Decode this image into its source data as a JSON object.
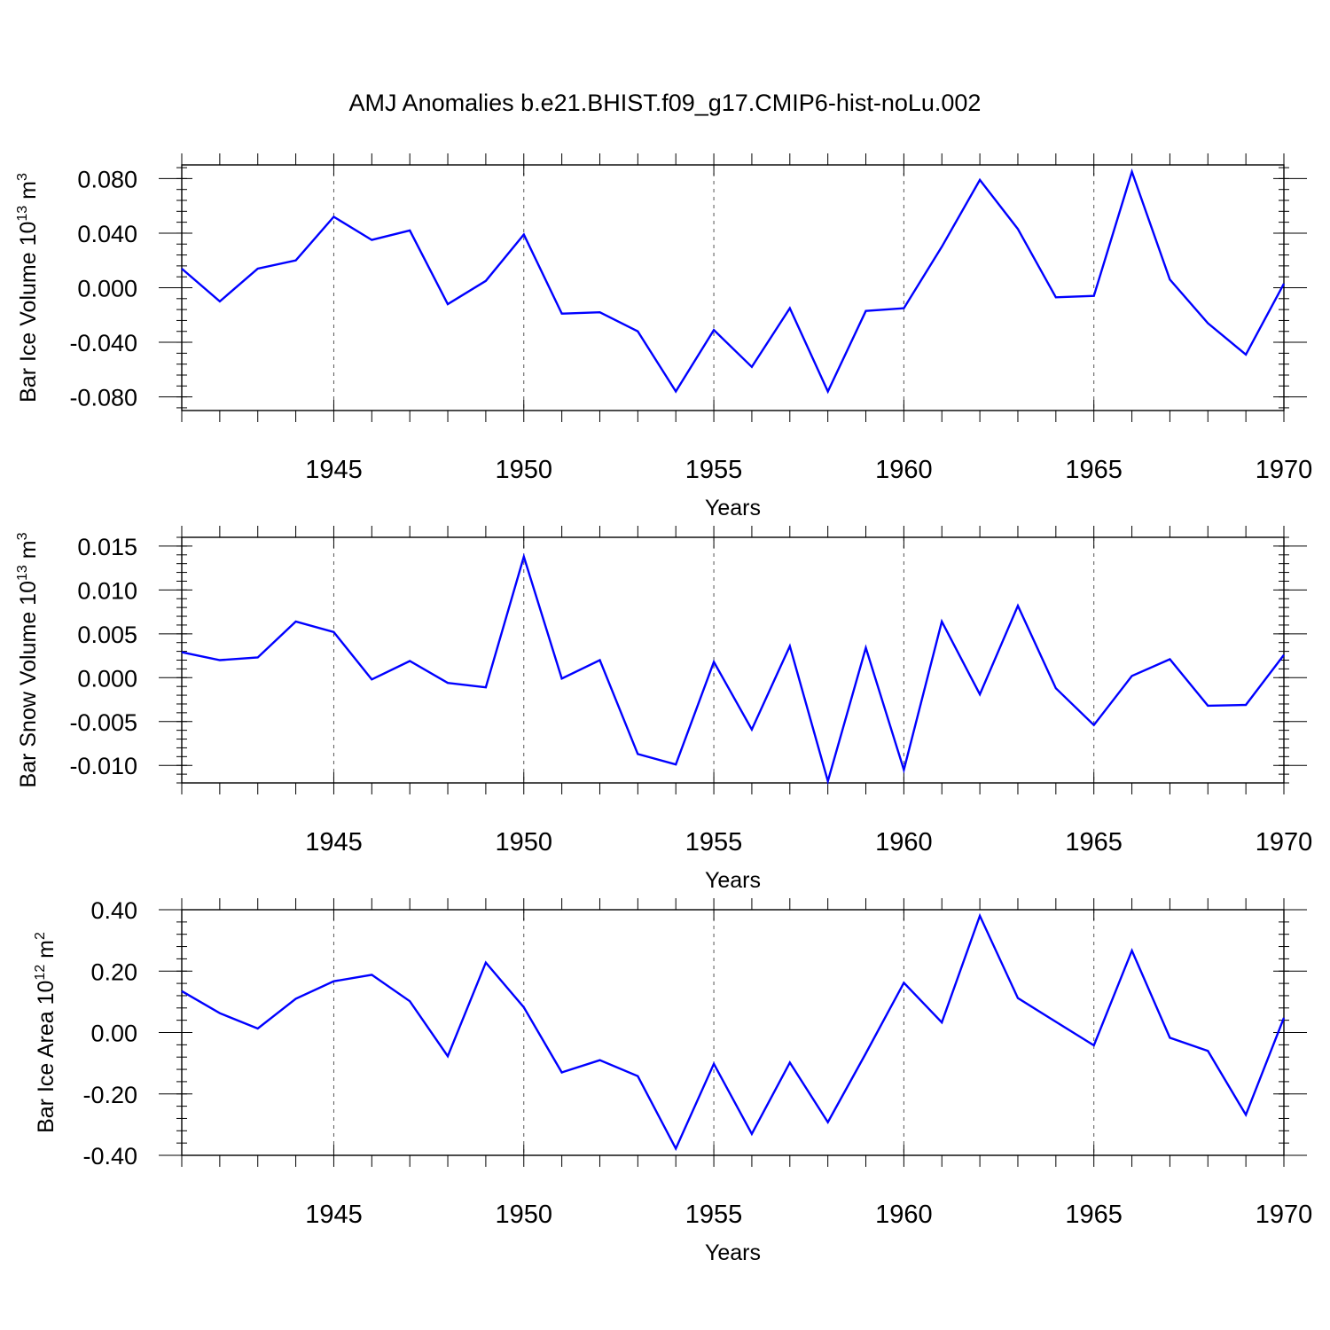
{
  "title": "AMJ Anomalies b.e21.BHIST.f09_g17.CMIP6-hist-noLu.002",
  "series_color": "#0000ff",
  "chart_data": [
    {
      "type": "line",
      "ylabel": {
        "base": "Bar Ice Volume 10",
        "exp": "13",
        "unit": " m",
        "unit_exp": "3"
      },
      "xlabel": "Years",
      "xlim": [
        1941,
        1970
      ],
      "ylim": [
        -0.09,
        0.09
      ],
      "grid": "dashed vertical at major ticks",
      "yticks": [
        0.08,
        0.04,
        0.0,
        -0.04,
        -0.08
      ],
      "ytick_labels": [
        "0.080",
        "0.040",
        "0.000",
        "-0.040",
        "-0.080"
      ],
      "yminor_step": 0.008,
      "xticks": [
        1945,
        1950,
        1955,
        1960,
        1965,
        1970
      ],
      "xtick_labels": [
        "1945",
        "1950",
        "1955",
        "1960",
        "1965",
        "1970"
      ],
      "x": [
        1941,
        1942,
        1943,
        1944,
        1945,
        1946,
        1947,
        1948,
        1949,
        1950,
        1951,
        1952,
        1953,
        1954,
        1955,
        1956,
        1957,
        1958,
        1959,
        1960,
        1961,
        1962,
        1963,
        1964,
        1965,
        1966,
        1967,
        1968,
        1969,
        1970
      ],
      "values": [
        0.014,
        -0.01,
        0.014,
        0.02,
        0.052,
        0.035,
        0.042,
        -0.012,
        0.005,
        0.039,
        -0.019,
        -0.018,
        -0.032,
        -0.076,
        -0.031,
        -0.058,
        -0.015,
        -0.076,
        -0.017,
        -0.015,
        0.03,
        0.079,
        0.043,
        -0.007,
        -0.006,
        0.085,
        0.006,
        -0.026,
        -0.049,
        0.003
      ]
    },
    {
      "type": "line",
      "ylabel": {
        "base": "Bar Snow Volume 10",
        "exp": "13",
        "unit": " m",
        "unit_exp": "3"
      },
      "xlabel": "Years",
      "xlim": [
        1941,
        1970
      ],
      "ylim": [
        -0.012,
        0.016
      ],
      "grid": "dashed vertical at major ticks",
      "yticks": [
        0.015,
        0.01,
        0.005,
        0.0,
        -0.005,
        -0.01
      ],
      "ytick_labels": [
        "0.015",
        "0.010",
        "0.005",
        "0.000",
        "-0.005",
        "-0.010"
      ],
      "yminor_step": 0.001,
      "xticks": [
        1945,
        1950,
        1955,
        1960,
        1965,
        1970
      ],
      "xtick_labels": [
        "1945",
        "1950",
        "1955",
        "1960",
        "1965",
        "1970"
      ],
      "x": [
        1941,
        1942,
        1943,
        1944,
        1945,
        1946,
        1947,
        1948,
        1949,
        1950,
        1951,
        1952,
        1953,
        1954,
        1955,
        1956,
        1957,
        1958,
        1959,
        1960,
        1961,
        1962,
        1963,
        1964,
        1965,
        1966,
        1967,
        1968,
        1969,
        1970
      ],
      "values": [
        0.0029,
        0.002,
        0.0023,
        0.0064,
        0.0052,
        -0.0002,
        0.0019,
        -0.0006,
        -0.0011,
        0.0138,
        -0.0001,
        0.002,
        -0.0087,
        -0.0099,
        0.0018,
        -0.0059,
        0.0036,
        -0.0118,
        0.0034,
        -0.0105,
        0.0064,
        -0.0019,
        0.0082,
        -0.0012,
        -0.0054,
        0.0002,
        0.0021,
        -0.0032,
        -0.0031,
        0.0026
      ]
    },
    {
      "type": "line",
      "ylabel": {
        "base": "Bar Ice Area 10",
        "exp": "12",
        "unit": " m",
        "unit_exp": "2"
      },
      "xlabel": "Years",
      "xlim": [
        1941,
        1970
      ],
      "ylim": [
        -0.4,
        0.4
      ],
      "grid": "dashed vertical at major ticks",
      "yticks": [
        0.4,
        0.2,
        0.0,
        -0.2,
        -0.4
      ],
      "ytick_labels": [
        "0.40",
        "0.20",
        "0.00",
        "-0.20",
        "-0.40"
      ],
      "yminor_step": 0.04,
      "xticks": [
        1945,
        1950,
        1955,
        1960,
        1965,
        1970
      ],
      "xtick_labels": [
        "1945",
        "1950",
        "1955",
        "1960",
        "1965",
        "1970"
      ],
      "x": [
        1941,
        1942,
        1943,
        1944,
        1945,
        1946,
        1947,
        1948,
        1949,
        1950,
        1951,
        1952,
        1953,
        1954,
        1955,
        1956,
        1957,
        1958,
        1959,
        1960,
        1961,
        1962,
        1963,
        1964,
        1965,
        1966,
        1967,
        1968,
        1969,
        1970
      ],
      "values": [
        0.135,
        0.063,
        0.013,
        0.11,
        0.167,
        0.188,
        0.102,
        -0.077,
        0.228,
        0.082,
        -0.13,
        -0.09,
        -0.142,
        -0.378,
        -0.102,
        -0.33,
        -0.098,
        -0.292,
        -0.068,
        0.162,
        0.033,
        0.38,
        0.112,
        0.035,
        -0.042,
        0.267,
        -0.017,
        -0.06,
        -0.268,
        0.048
      ]
    }
  ]
}
